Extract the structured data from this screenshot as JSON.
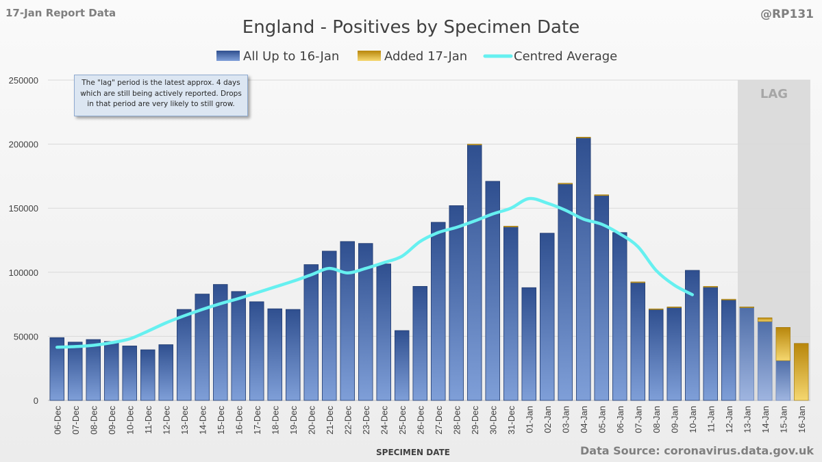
{
  "header": {
    "report_label": "17-Jan Report Data",
    "handle": "@RP131"
  },
  "footer": {
    "source": "Data Source: coronavirus.data.gov.uk"
  },
  "note": {
    "text": "The \"lag\" period is the latest approx. 4 days which are still being actively reported. Drops in that period are very likely to still grow."
  },
  "colors": {
    "bar_top": "#2f4f8f",
    "bar_bottom": "#7f9fd8",
    "lag_bar_top": "#4f6ea8",
    "lag_bar_bottom": "#9fb5e0",
    "added_top": "#b8860b",
    "added_bottom": "#f5d770",
    "avg_line": "#66f0f0",
    "lag_shade": "#dcdcdc",
    "grid": "#d9d9d9"
  },
  "chart_data": {
    "type": "bar",
    "title": "England - Positives by Specimen Date",
    "xlabel": "SPECIMEN DATE",
    "ylabel": "",
    "ylim": [
      0,
      250000
    ],
    "yticks": [
      0,
      50000,
      100000,
      150000,
      200000,
      250000
    ],
    "ytick_labels": [
      "0",
      "50000",
      "100000",
      "150000",
      "200000",
      "250000"
    ],
    "grid": true,
    "legend_position": "top-center",
    "lag_label": "LAG",
    "lag_categories": [
      "13-Jan",
      "14-Jan",
      "15-Jan",
      "16-Jan"
    ],
    "categories": [
      "06-Dec",
      "07-Dec",
      "08-Dec",
      "09-Dec",
      "10-Dec",
      "11-Dec",
      "12-Dec",
      "13-Dec",
      "14-Dec",
      "15-Dec",
      "16-Dec",
      "17-Dec",
      "18-Dec",
      "19-Dec",
      "20-Dec",
      "21-Dec",
      "22-Dec",
      "23-Dec",
      "24-Dec",
      "25-Dec",
      "26-Dec",
      "27-Dec",
      "28-Dec",
      "29-Dec",
      "30-Dec",
      "31-Dec",
      "01-Jan",
      "02-Jan",
      "03-Jan",
      "04-Jan",
      "05-Jan",
      "06-Jan",
      "07-Jan",
      "08-Jan",
      "09-Jan",
      "10-Jan",
      "11-Jan",
      "12-Jan",
      "13-Jan",
      "14-Jan",
      "15-Jan",
      "16-Jan"
    ],
    "series": [
      {
        "name": "All Up to 16-Jan",
        "type": "bar",
        "values": [
          49000,
          45500,
          47500,
          46000,
          42500,
          39500,
          43500,
          71000,
          83000,
          90500,
          85000,
          77000,
          71500,
          71000,
          106000,
          116500,
          124000,
          122500,
          106500,
          54500,
          89000,
          139000,
          152000,
          199500,
          171000,
          135500,
          88000,
          130500,
          169000,
          205000,
          160000,
          131000,
          92000,
          71000,
          72500,
          101500,
          88500,
          78500,
          72500,
          61500,
          31000,
          0
        ]
      },
      {
        "name": "Added 17-Jan",
        "type": "bar",
        "values": [
          0,
          0,
          0,
          0,
          0,
          0,
          0,
          0,
          0,
          0,
          0,
          0,
          0,
          0,
          0,
          0,
          0,
          0,
          0,
          0,
          0,
          0,
          0,
          500,
          0,
          500,
          0,
          0,
          500,
          500,
          500,
          0,
          500,
          500,
          500,
          0,
          500,
          500,
          500,
          3000,
          26000,
          44500
        ]
      },
      {
        "name": "Centred Average",
        "type": "line",
        "values": [
          41500,
          42000,
          43000,
          45000,
          48000,
          54000,
          60500,
          66000,
          71000,
          75500,
          79500,
          84000,
          88500,
          93000,
          98000,
          103000,
          99500,
          103000,
          107500,
          112500,
          124000,
          131000,
          135000,
          140000,
          145500,
          150000,
          157500,
          154000,
          148500,
          141500,
          137500,
          130000,
          120000,
          101500,
          90000,
          82500,
          null,
          null,
          null,
          null,
          null,
          null
        ]
      }
    ]
  }
}
